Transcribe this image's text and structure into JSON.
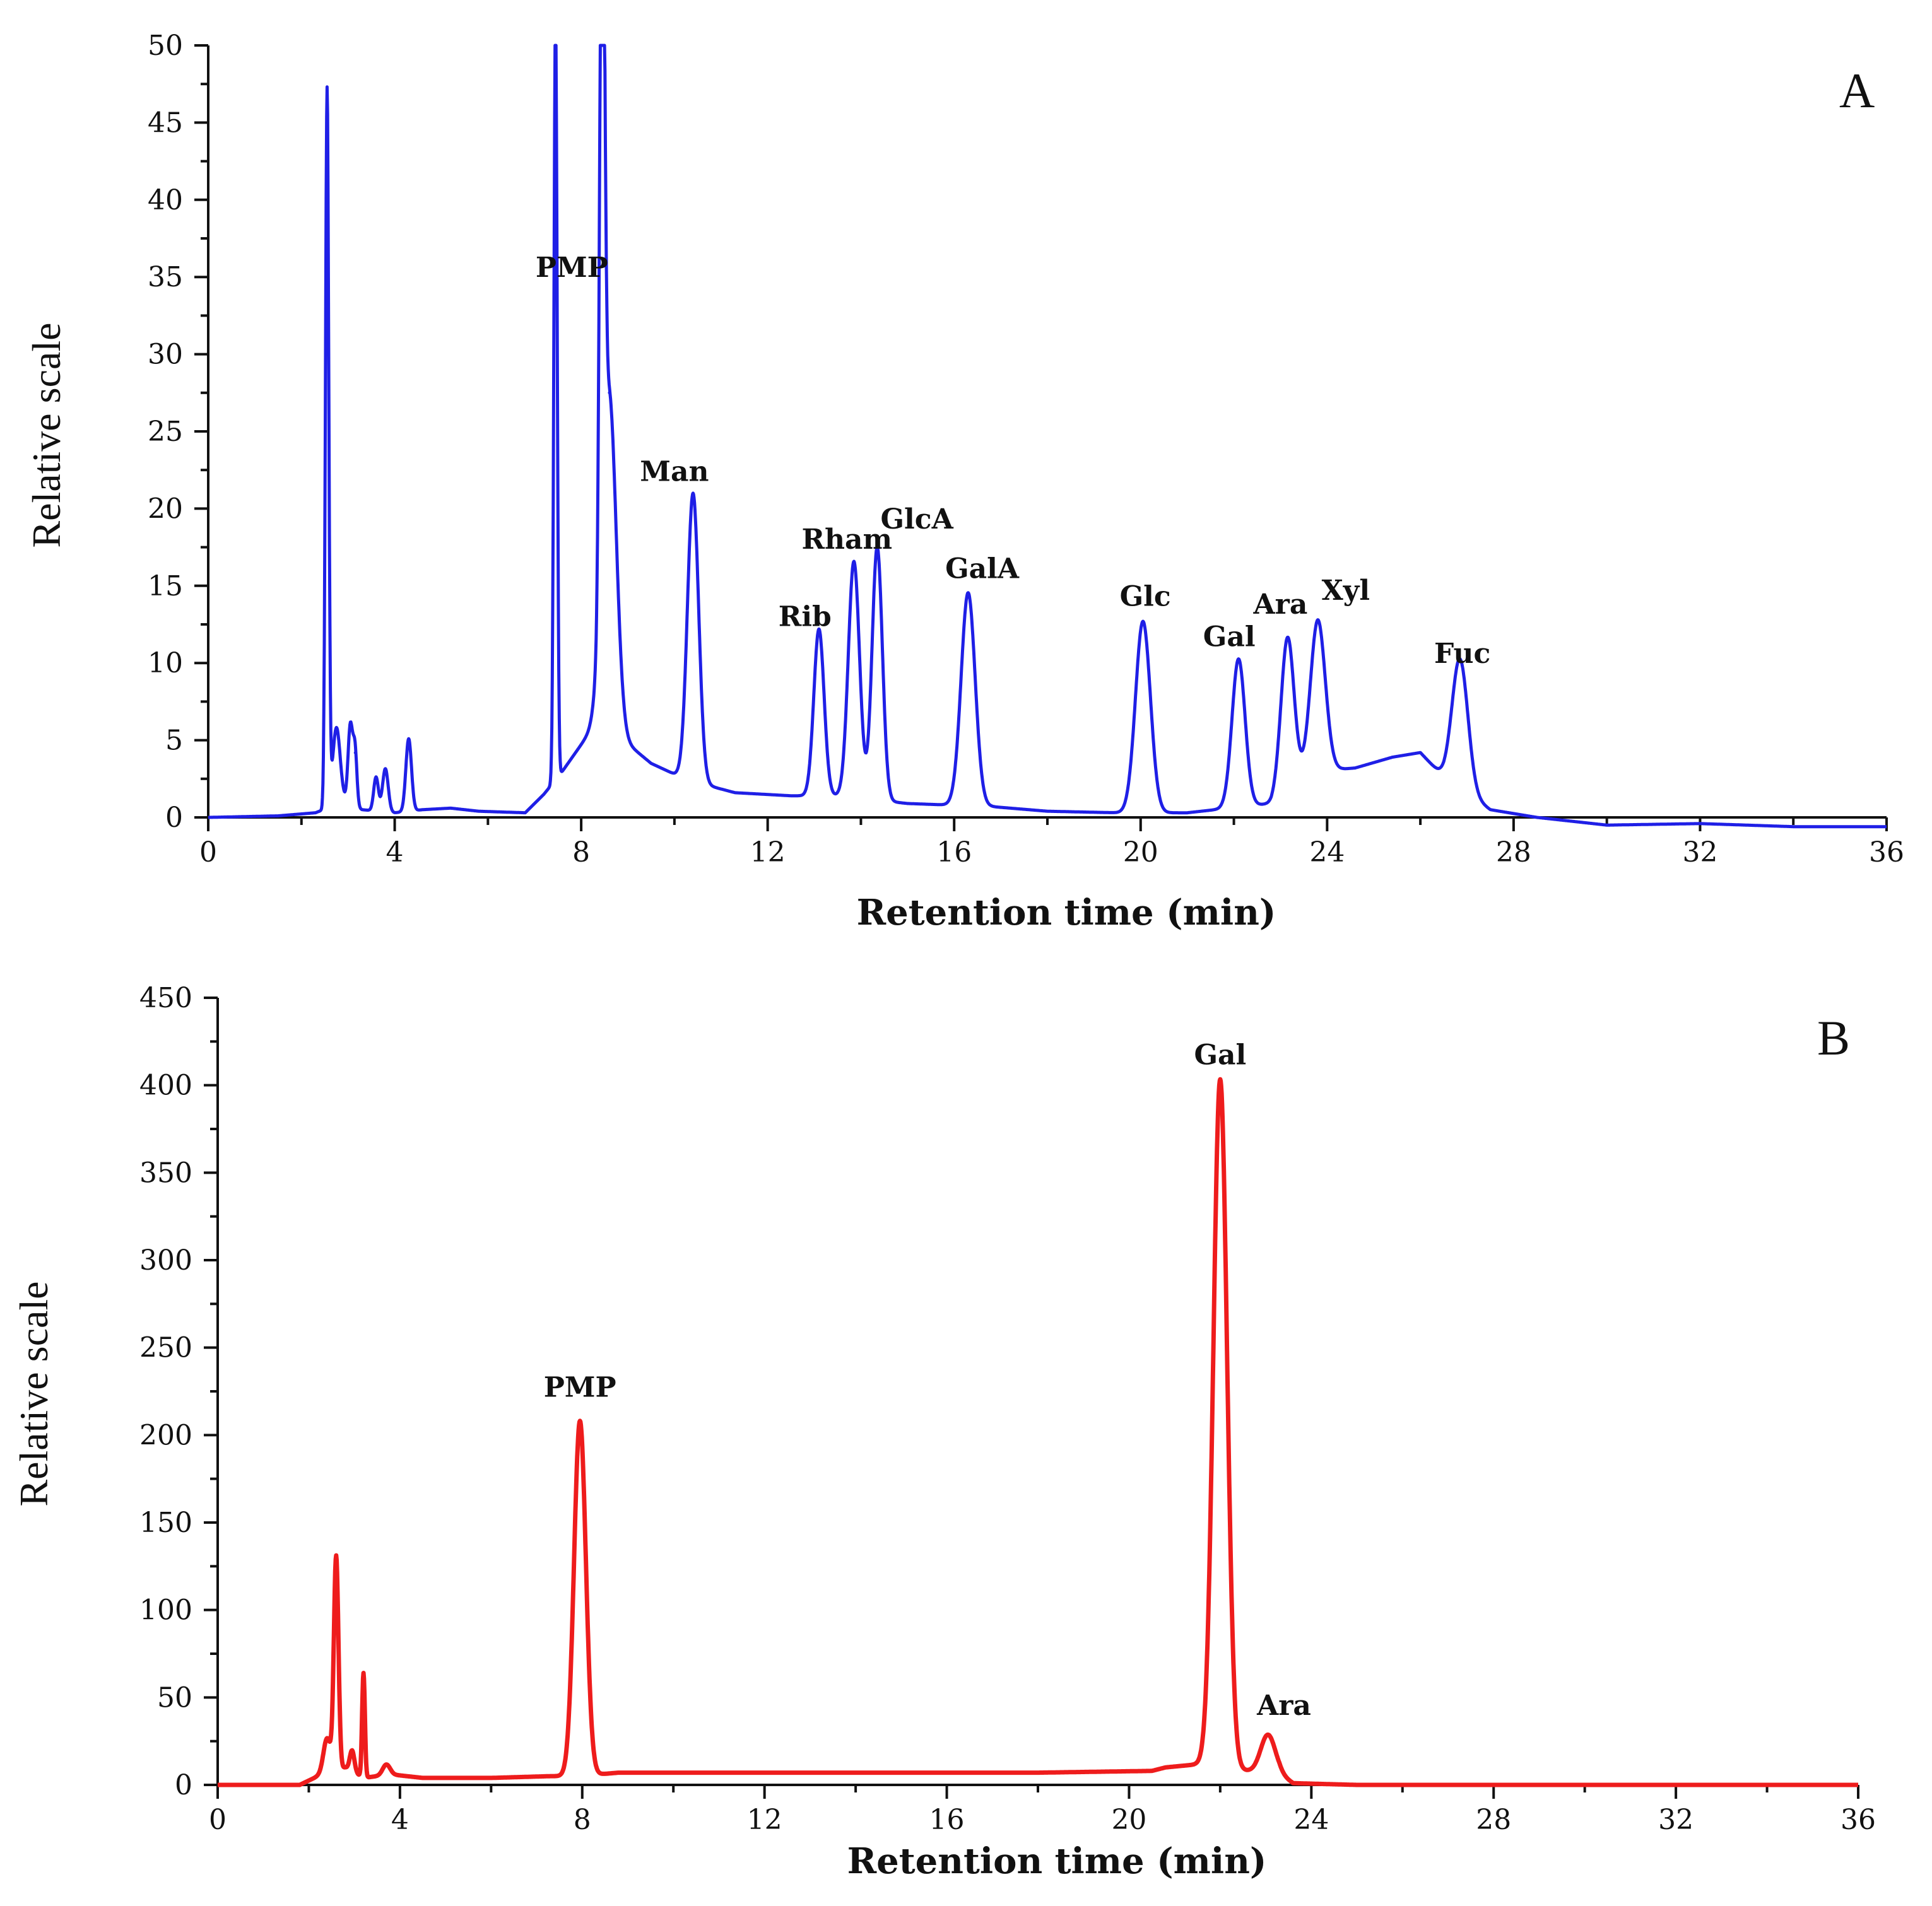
{
  "chart_data": [
    {
      "type": "line",
      "panel_label": "A",
      "xlabel": "Retention time (min)",
      "ylabel": "Relative scale",
      "xlim": [
        0,
        36
      ],
      "ylim": [
        0,
        50
      ],
      "x_ticks": [
        0,
        4,
        8,
        12,
        16,
        20,
        24,
        28,
        32,
        36
      ],
      "y_ticks": [
        0,
        5,
        10,
        15,
        20,
        25,
        30,
        35,
        40,
        45,
        50
      ],
      "color": "#1f1fe6",
      "baseline": [
        [
          0,
          0
        ],
        [
          1.5,
          0.1
        ],
        [
          2.3,
          0.3
        ],
        [
          2.9,
          1.0
        ],
        [
          3.3,
          0.5
        ],
        [
          4.0,
          0.3
        ],
        [
          4.6,
          0.5
        ],
        [
          5.2,
          0.6
        ],
        [
          5.8,
          0.4
        ],
        [
          6.8,
          0.3
        ],
        [
          7.2,
          1.5
        ],
        [
          7.6,
          3
        ],
        [
          8.3,
          6
        ],
        [
          8.9,
          5
        ],
        [
          9.5,
          3.5
        ],
        [
          10.0,
          2.8
        ],
        [
          10.8,
          2.0
        ],
        [
          11.3,
          1.6
        ],
        [
          12.5,
          1.4
        ],
        [
          13.5,
          1.4
        ],
        [
          15.0,
          0.9
        ],
        [
          16.8,
          0.7
        ],
        [
          18.0,
          0.4
        ],
        [
          19.5,
          0.3
        ],
        [
          21.0,
          0.3
        ],
        [
          22.8,
          0.9
        ],
        [
          23.2,
          2
        ],
        [
          23.8,
          3
        ],
        [
          24.6,
          3.2
        ],
        [
          25.4,
          3.9
        ],
        [
          26.0,
          4.2
        ],
        [
          26.5,
          2.6
        ],
        [
          27.5,
          0.5
        ],
        [
          28.5,
          0.0
        ],
        [
          30,
          -0.5
        ],
        [
          32,
          -0.4
        ],
        [
          34,
          -0.6
        ],
        [
          36,
          -0.6
        ]
      ],
      "peaks": [
        {
          "x": 2.55,
          "y": 46.5,
          "w": 0.035
        },
        {
          "x": 2.75,
          "y": 5.0,
          "w": 0.08
        },
        {
          "x": 3.05,
          "y": 5.2,
          "w": 0.05
        },
        {
          "x": 3.15,
          "y": 3.5,
          "w": 0.04
        },
        {
          "x": 3.6,
          "y": 2.2,
          "w": 0.05
        },
        {
          "x": 3.8,
          "y": 2.8,
          "w": 0.06
        },
        {
          "x": 4.3,
          "y": 4.7,
          "w": 0.06
        },
        {
          "x": 7.45,
          "y": 50,
          "w": 0.035
        },
        {
          "x": 8.45,
          "y": 50,
          "w": 0.05
        },
        {
          "x": 8.6,
          "y": 22,
          "w": 0.15
        },
        {
          "x": 10.4,
          "y": 18.6,
          "w": 0.12
        },
        {
          "x": 13.1,
          "y": 10.8,
          "w": 0.11
        },
        {
          "x": 13.85,
          "y": 15.3,
          "w": 0.12
        },
        {
          "x": 14.35,
          "y": 16.4,
          "w": 0.11
        },
        {
          "x": 16.3,
          "y": 13.8,
          "w": 0.15
        },
        {
          "x": 20.05,
          "y": 12.4,
          "w": 0.16
        },
        {
          "x": 22.1,
          "y": 9.6,
          "w": 0.14
        },
        {
          "x": 23.15,
          "y": 9.8,
          "w": 0.14
        },
        {
          "x": 23.8,
          "y": 9.8,
          "w": 0.16
        },
        {
          "x": 26.85,
          "y": 8.4,
          "w": 0.17
        }
      ],
      "annotations": [
        {
          "text": "PMP",
          "x": 7.8,
          "y": 35.0
        },
        {
          "text": "Man",
          "x": 10.0,
          "y": 21.8
        },
        {
          "text": "Rham",
          "x": 13.7,
          "y": 17.4
        },
        {
          "text": "GlcA",
          "x": 15.2,
          "y": 18.7
        },
        {
          "text": "GalA",
          "x": 16.6,
          "y": 15.5
        },
        {
          "text": "Rib",
          "x": 12.8,
          "y": 12.4
        },
        {
          "text": "Glc",
          "x": 20.1,
          "y": 13.7
        },
        {
          "text": "Gal",
          "x": 21.9,
          "y": 11.1
        },
        {
          "text": "Ara",
          "x": 23.0,
          "y": 13.2
        },
        {
          "text": "Xyl",
          "x": 24.4,
          "y": 14.1
        },
        {
          "text": "Fuc",
          "x": 26.9,
          "y": 10.0
        }
      ]
    },
    {
      "type": "line",
      "panel_label": "B",
      "xlabel": "Retention time (min)",
      "ylabel": "Relative scale",
      "xlim": [
        0,
        36
      ],
      "ylim": [
        0,
        450
      ],
      "x_ticks": [
        0,
        4,
        8,
        12,
        16,
        20,
        24,
        28,
        32,
        36
      ],
      "y_ticks": [
        0,
        50,
        100,
        150,
        200,
        250,
        300,
        350,
        400,
        450
      ],
      "color": "#ee1c1c",
      "baseline": [
        [
          0,
          0
        ],
        [
          1.8,
          0
        ],
        [
          2.2,
          5
        ],
        [
          2.8,
          10
        ],
        [
          3.2,
          4
        ],
        [
          3.8,
          6
        ],
        [
          4.5,
          4
        ],
        [
          6,
          4
        ],
        [
          7.3,
          5
        ],
        [
          7.9,
          5
        ],
        [
          8.8,
          7
        ],
        [
          10,
          7
        ],
        [
          14,
          7
        ],
        [
          18,
          7
        ],
        [
          20.5,
          8
        ],
        [
          20.8,
          10
        ],
        [
          21.6,
          12
        ],
        [
          22.6,
          8
        ],
        [
          23.3,
          6
        ],
        [
          23.6,
          1
        ],
        [
          25,
          0
        ],
        [
          36,
          0
        ]
      ],
      "peaks": [
        {
          "x": 2.4,
          "y": 20,
          "w": 0.08
        },
        {
          "x": 2.6,
          "y": 122,
          "w": 0.05
        },
        {
          "x": 2.95,
          "y": 12,
          "w": 0.05
        },
        {
          "x": 3.2,
          "y": 60,
          "w": 0.03
        },
        {
          "x": 3.7,
          "y": 6,
          "w": 0.08
        },
        {
          "x": 7.95,
          "y": 203,
          "w": 0.13
        },
        {
          "x": 22.0,
          "y": 393,
          "w": 0.15
        },
        {
          "x": 23.05,
          "y": 22,
          "w": 0.16
        }
      ],
      "annotations": [
        {
          "text": "PMP",
          "x": 7.95,
          "y": 222
        },
        {
          "text": "Gal",
          "x": 22.0,
          "y": 412
        },
        {
          "text": "Ara",
          "x": 23.4,
          "y": 40
        }
      ]
    }
  ]
}
